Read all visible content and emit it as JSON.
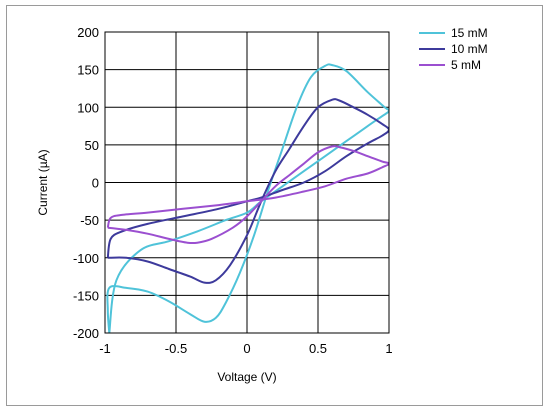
{
  "chart_data": {
    "type": "line",
    "title": "",
    "xlabel": "Voltage (V)",
    "ylabel": "Current (µA)",
    "xlim": [
      -1,
      1
    ],
    "ylim": [
      -200,
      200
    ],
    "x_ticks": [
      -1,
      -0.5,
      0,
      0.5,
      1
    ],
    "x_tick_labels": [
      "-1",
      "-0.5",
      "0",
      "0.5",
      "1"
    ],
    "y_ticks": [
      -200,
      -150,
      -100,
      -50,
      0,
      50,
      100,
      150,
      200
    ],
    "y_tick_labels": [
      "-200",
      "-150",
      "-100",
      "-50",
      "0",
      "50",
      "100",
      "150",
      "200"
    ],
    "grid": true,
    "legend_position": "top-right outside",
    "series": [
      {
        "name": "15 mM",
        "color": "#4fc3d9",
        "points": [
          [
            -0.97,
            -200
          ],
          [
            -0.98,
            -170
          ],
          [
            -0.97,
            -140
          ],
          [
            -0.85,
            -140
          ],
          [
            -0.7,
            -145
          ],
          [
            -0.55,
            -158
          ],
          [
            -0.4,
            -175
          ],
          [
            -0.3,
            -185
          ],
          [
            -0.22,
            -180
          ],
          [
            -0.15,
            -160
          ],
          [
            -0.05,
            -120
          ],
          [
            0.05,
            -70
          ],
          [
            0.15,
            -10
          ],
          [
            0.25,
            45
          ],
          [
            0.35,
            100
          ],
          [
            0.45,
            140
          ],
          [
            0.55,
            155
          ],
          [
            0.6,
            156
          ],
          [
            0.7,
            148
          ],
          [
            0.85,
            120
          ],
          [
            0.97,
            100
          ],
          [
            1.0,
            95
          ],
          [
            0.95,
            88
          ],
          [
            0.85,
            75
          ],
          [
            0.7,
            55
          ],
          [
            0.55,
            35
          ],
          [
            0.4,
            15
          ],
          [
            0.25,
            -5
          ],
          [
            0.1,
            -25
          ],
          [
            0.0,
            -40
          ],
          [
            -0.15,
            -50
          ],
          [
            -0.35,
            -65
          ],
          [
            -0.55,
            -78
          ],
          [
            -0.75,
            -90
          ],
          [
            -0.92,
            -130
          ],
          [
            -0.97,
            -200
          ]
        ]
      },
      {
        "name": "10 mM",
        "color": "#3d3a9c",
        "points": [
          [
            -0.98,
            -100
          ],
          [
            -0.85,
            -100
          ],
          [
            -0.7,
            -105
          ],
          [
            -0.55,
            -115
          ],
          [
            -0.4,
            -125
          ],
          [
            -0.3,
            -133
          ],
          [
            -0.22,
            -130
          ],
          [
            -0.12,
            -110
          ],
          [
            0.0,
            -70
          ],
          [
            0.1,
            -25
          ],
          [
            0.2,
            15
          ],
          [
            0.3,
            45
          ],
          [
            0.4,
            75
          ],
          [
            0.5,
            100
          ],
          [
            0.6,
            110
          ],
          [
            0.65,
            109
          ],
          [
            0.75,
            100
          ],
          [
            0.85,
            90
          ],
          [
            0.95,
            78
          ],
          [
            1.0,
            70
          ],
          [
            0.95,
            62
          ],
          [
            0.85,
            52
          ],
          [
            0.7,
            35
          ],
          [
            0.55,
            15
          ],
          [
            0.4,
            0
          ],
          [
            0.25,
            -10
          ],
          [
            0.1,
            -20
          ],
          [
            0.0,
            -25
          ],
          [
            -0.2,
            -35
          ],
          [
            -0.45,
            -45
          ],
          [
            -0.7,
            -55
          ],
          [
            -0.88,
            -65
          ],
          [
            -0.96,
            -75
          ],
          [
            -0.98,
            -100
          ]
        ]
      },
      {
        "name": "5 mM",
        "color": "#9b4fd0",
        "points": [
          [
            -0.98,
            -60
          ],
          [
            -0.85,
            -63
          ],
          [
            -0.7,
            -68
          ],
          [
            -0.55,
            -75
          ],
          [
            -0.42,
            -80
          ],
          [
            -0.35,
            -80
          ],
          [
            -0.25,
            -75
          ],
          [
            -0.1,
            -60
          ],
          [
            0.0,
            -45
          ],
          [
            0.1,
            -25
          ],
          [
            0.2,
            -5
          ],
          [
            0.3,
            10
          ],
          [
            0.4,
            25
          ],
          [
            0.5,
            40
          ],
          [
            0.6,
            48
          ],
          [
            0.65,
            47
          ],
          [
            0.75,
            42
          ],
          [
            0.85,
            35
          ],
          [
            0.95,
            28
          ],
          [
            1.0,
            25
          ],
          [
            0.95,
            20
          ],
          [
            0.85,
            12
          ],
          [
            0.7,
            5
          ],
          [
            0.55,
            -5
          ],
          [
            0.4,
            -12
          ],
          [
            0.2,
            -20
          ],
          [
            0.0,
            -25
          ],
          [
            -0.2,
            -30
          ],
          [
            -0.45,
            -35
          ],
          [
            -0.7,
            -40
          ],
          [
            -0.88,
            -43
          ],
          [
            -0.96,
            -47
          ],
          [
            -0.98,
            -60
          ]
        ]
      }
    ]
  }
}
